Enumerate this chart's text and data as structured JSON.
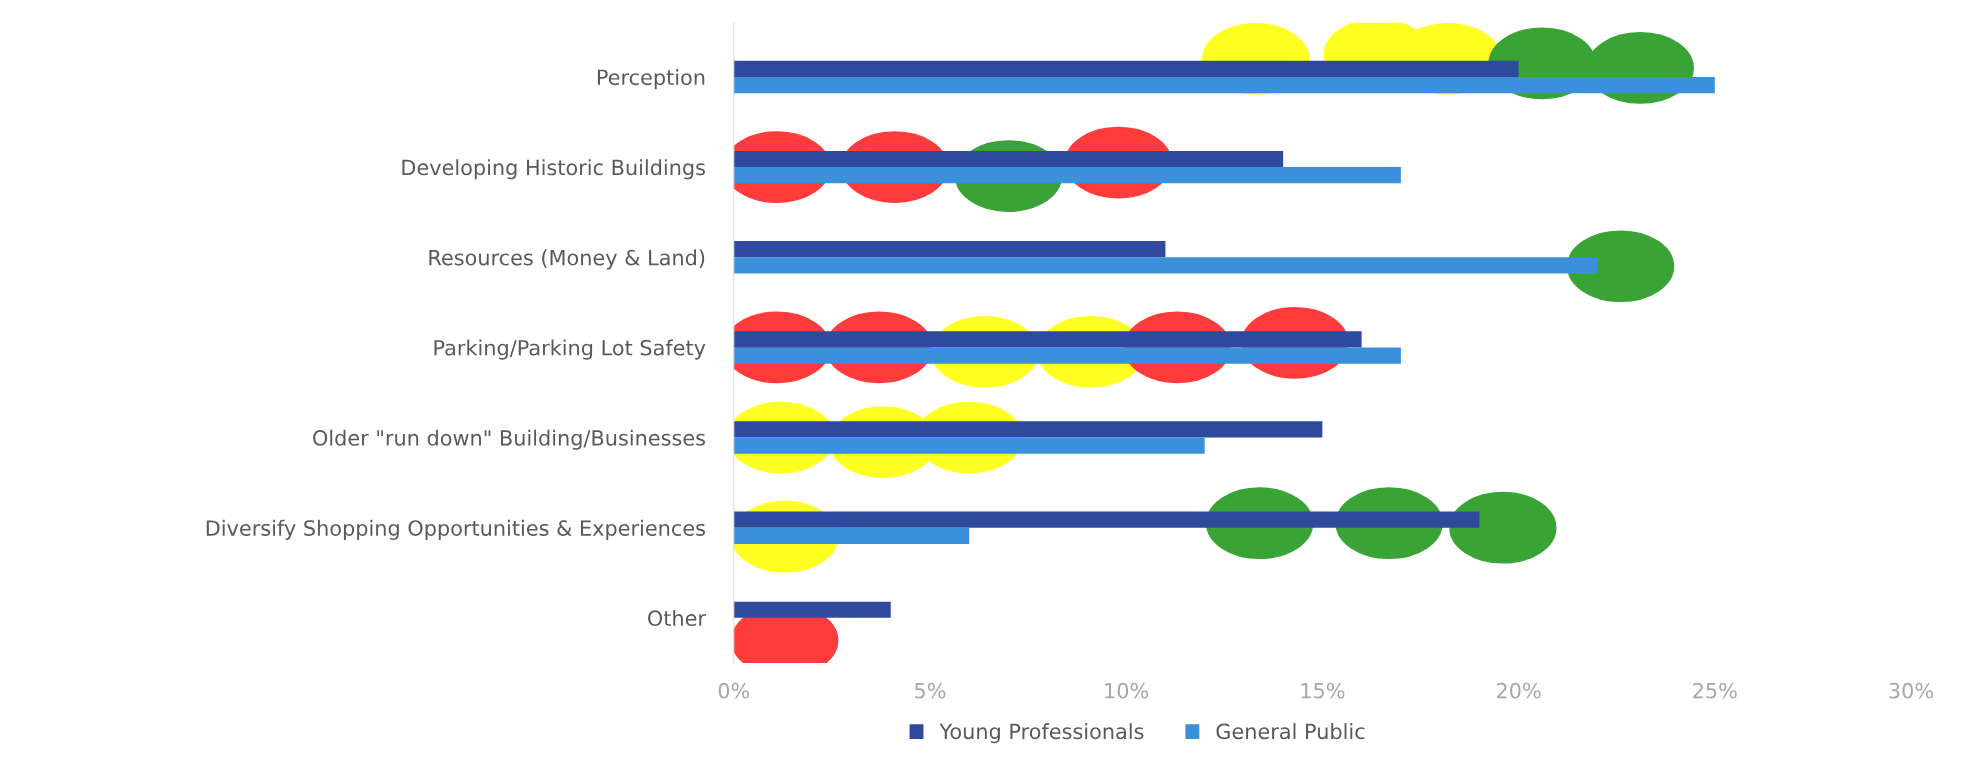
{
  "chart_data": {
    "type": "bar",
    "orientation": "horizontal",
    "categories": [
      "Perception",
      "Developing Historic Buildings",
      "Resources (Money & Land)",
      "Parking/Parking Lot Safety",
      "Older \"run down\" Building/Businesses",
      "Diversify Shopping Opportunities & Experiences",
      "Other"
    ],
    "series": [
      {
        "name": "Young Professionals",
        "color": "#2f4a9c",
        "values": [
          20,
          14,
          11,
          16,
          15,
          19,
          4
        ]
      },
      {
        "name": "General Public",
        "color": "#3a90db",
        "values": [
          25,
          17,
          22,
          17,
          12,
          6,
          null
        ]
      }
    ],
    "xlim": [
      0,
      30
    ],
    "xticks": [
      {
        "value": 0,
        "label": "0%"
      },
      {
        "value": 5,
        "label": "5%"
      },
      {
        "value": 10,
        "label": "10%"
      },
      {
        "value": 15,
        "label": "15%"
      },
      {
        "value": 20,
        "label": "20%"
      },
      {
        "value": 25,
        "label": "25%"
      },
      {
        "value": 30,
        "label": "30%"
      }
    ],
    "grid": false,
    "legend": "bottom"
  }
}
